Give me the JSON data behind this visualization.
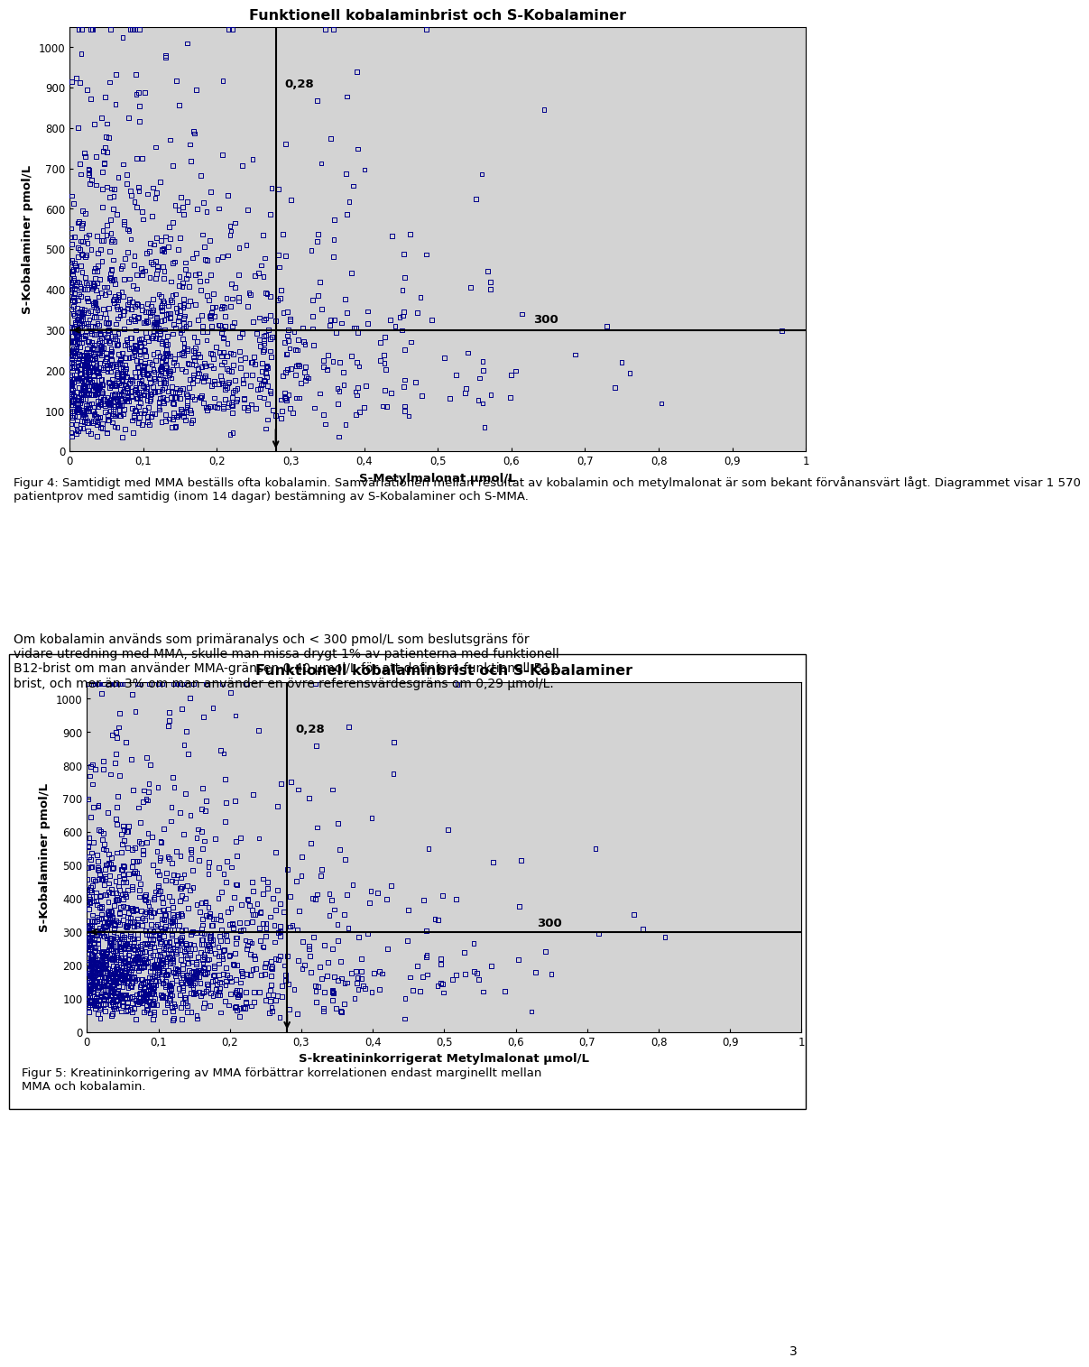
{
  "title1": "Funktionell kobalaminbrist och S-Kobalaminer",
  "title2": "Funktionell kobalaminbrist och S-Kobalaminer",
  "ylabel": "S-Kobalaminer pmol/L",
  "xlabel1": "S-Metylmalonat μmol/L",
  "xlabel2": "S-kreatininkorrigerat Metylmalonat μmol/L",
  "fig4_caption": "Figur 4: Samtidigt med MMA beställs ofta kobalamin. Samvariationen mellan resultat av kobalamin och metylmalonat är som bekant förvånansvärt lågt. Diagrammet visar 1 570\npatientprov med samtidig (inom 14 dagar) bestämning av S-Kobalaminer och S-MMA.",
  "body_text": "Om kobalamin används som primäranalys och < 300 pmol/L som beslutsgräns för\nvidare utredning med MMA, skulle man missa drygt 1% av patienterna med funktionell\nB12-brist om man använder MMA-gränsen 0,40 μmol/L för att definiera funktionell B12\nbrist, och mer än 3% om man använder en övre referensvärdesgräns om 0,29 μmol/L.",
  "fig5_caption": "Figur 5: Kreatininkorrigering av MMA förbättrar korrelationen endast marginellt mellan\nMMA och kobalamin.",
  "vline1": 0.28,
  "vline2": 0.28,
  "hline": 300,
  "xlim": [
    0,
    1.0
  ],
  "ylim": [
    0,
    1050
  ],
  "xticks": [
    0,
    0.1,
    0.2,
    0.3,
    0.4,
    0.5,
    0.6,
    0.7,
    0.8,
    0.9,
    1.0
  ],
  "yticks": [
    0,
    100,
    200,
    300,
    400,
    500,
    600,
    700,
    800,
    900,
    1000
  ],
  "xtick_labels": [
    "0",
    "0,1",
    "0,2",
    "0,3",
    "0,4",
    "0,5",
    "0,6",
    "0,7",
    "0,8",
    "0,9",
    "1"
  ],
  "scatter_color": "#00008B",
  "bg_color": "#D3D3D3",
  "page_bg": "#FFFFFF",
  "seed": 42,
  "n_points": 1570,
  "vline_label": "0,28",
  "hline_label": "300",
  "page_number": "3"
}
